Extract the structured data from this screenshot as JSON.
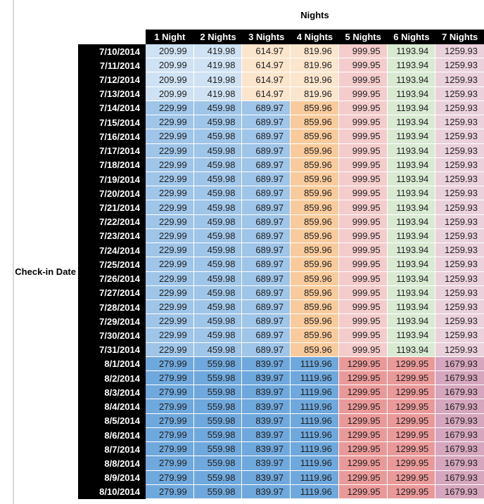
{
  "title": "Nights",
  "axis_label": "Check-in Date",
  "palette": {
    "light_blue": "#CFE2F3",
    "med_blue": "#9FC5E8",
    "blue": "#6FA8DC",
    "light_orange": "#FCE5CD",
    "med_orange": "#F9CB9C",
    "light_red": "#F4CCCC",
    "med_red": "#EA9999",
    "light_green": "#D9EAD3",
    "light_magenta": "#EAD1DC",
    "med_magenta": "#D5A6BD",
    "header_bg": "#000000",
    "header_text": "#FFFFFF",
    "value_text": "#1F1F1F",
    "gridline": "#FFFFFF"
  },
  "bands": {
    "early_july": {
      "colors": [
        "light_blue",
        "light_blue",
        "light_orange",
        "light_orange",
        "light_red",
        "light_green",
        "light_magenta"
      ]
    },
    "mid_july": {
      "colors": [
        "med_blue",
        "med_blue",
        "med_blue",
        "med_orange",
        "light_red",
        "light_green",
        "light_magenta"
      ]
    },
    "august": {
      "colors": [
        "blue",
        "blue",
        "blue",
        "blue",
        "med_red",
        "med_red",
        "med_magenta"
      ]
    }
  },
  "chart_data": {
    "type": "table",
    "title": "Nights",
    "row_axis_label": "Check-in Date",
    "columns": [
      "1 Night",
      "2 Nights",
      "3 Nights",
      "4 Nights",
      "5 Nights",
      "6 Nights",
      "7 Nights"
    ],
    "rows": [
      {
        "date": "7/10/2014",
        "band": "early_july",
        "values": [
          "209.99",
          "419.98",
          "614.97",
          "819.96",
          "999.95",
          "1193.94",
          "1259.93"
        ]
      },
      {
        "date": "7/11/2014",
        "band": "early_july",
        "values": [
          "209.99",
          "419.98",
          "614.97",
          "819.96",
          "999.95",
          "1193.94",
          "1259.93"
        ]
      },
      {
        "date": "7/12/2014",
        "band": "early_july",
        "values": [
          "209.99",
          "419.98",
          "614.97",
          "819.96",
          "999.95",
          "1193.94",
          "1259.93"
        ]
      },
      {
        "date": "7/13/2014",
        "band": "early_july",
        "values": [
          "209.99",
          "419.98",
          "614.97",
          "819.96",
          "999.95",
          "1193.94",
          "1259.93"
        ]
      },
      {
        "date": "7/14/2014",
        "band": "mid_july",
        "values": [
          "229.99",
          "459.98",
          "689.97",
          "859.96",
          "999.95",
          "1193.94",
          "1259.93"
        ]
      },
      {
        "date": "7/15/2014",
        "band": "mid_july",
        "values": [
          "229.99",
          "459.98",
          "689.97",
          "859.96",
          "999.95",
          "1193.94",
          "1259.93"
        ]
      },
      {
        "date": "7/16/2014",
        "band": "mid_july",
        "values": [
          "229.99",
          "459.98",
          "689.97",
          "859.96",
          "999.95",
          "1193.94",
          "1259.93"
        ]
      },
      {
        "date": "7/17/2014",
        "band": "mid_july",
        "values": [
          "229.99",
          "459.98",
          "689.97",
          "859.96",
          "999.95",
          "1193.94",
          "1259.93"
        ]
      },
      {
        "date": "7/18/2014",
        "band": "mid_july",
        "values": [
          "229.99",
          "459.98",
          "689.97",
          "859.96",
          "999.95",
          "1193.94",
          "1259.93"
        ]
      },
      {
        "date": "7/19/2014",
        "band": "mid_july",
        "values": [
          "229.99",
          "459.98",
          "689.97",
          "859.96",
          "999.95",
          "1193.94",
          "1259.93"
        ]
      },
      {
        "date": "7/20/2014",
        "band": "mid_july",
        "values": [
          "229.99",
          "459.98",
          "689.97",
          "859.96",
          "999.95",
          "1193.94",
          "1259.93"
        ]
      },
      {
        "date": "7/21/2014",
        "band": "mid_july",
        "values": [
          "229.99",
          "459.98",
          "689.97",
          "859.96",
          "999.95",
          "1193.94",
          "1259.93"
        ]
      },
      {
        "date": "7/22/2014",
        "band": "mid_july",
        "values": [
          "229.99",
          "459.98",
          "689.97",
          "859.96",
          "999.95",
          "1193.94",
          "1259.93"
        ]
      },
      {
        "date": "7/23/2014",
        "band": "mid_july",
        "values": [
          "229.99",
          "459.98",
          "689.97",
          "859.96",
          "999.95",
          "1193.94",
          "1259.93"
        ]
      },
      {
        "date": "7/24/2014",
        "band": "mid_july",
        "values": [
          "229.99",
          "459.98",
          "689.97",
          "859.96",
          "999.95",
          "1193.94",
          "1259.93"
        ]
      },
      {
        "date": "7/25/2014",
        "band": "mid_july",
        "values": [
          "229.99",
          "459.98",
          "689.97",
          "859.96",
          "999.95",
          "1193.94",
          "1259.93"
        ]
      },
      {
        "date": "7/26/2014",
        "band": "mid_july",
        "values": [
          "229.99",
          "459.98",
          "689.97",
          "859.96",
          "999.95",
          "1193.94",
          "1259.93"
        ]
      },
      {
        "date": "7/27/2014",
        "band": "mid_july",
        "values": [
          "229.99",
          "459.98",
          "689.97",
          "859.96",
          "999.95",
          "1193.94",
          "1259.93"
        ]
      },
      {
        "date": "7/28/2014",
        "band": "mid_july",
        "values": [
          "229.99",
          "459.98",
          "689.97",
          "859.96",
          "999.95",
          "1193.94",
          "1259.93"
        ]
      },
      {
        "date": "7/29/2014",
        "band": "mid_july",
        "values": [
          "229.99",
          "459.98",
          "689.97",
          "859.96",
          "999.95",
          "1193.94",
          "1259.93"
        ]
      },
      {
        "date": "7/30/2014",
        "band": "mid_july",
        "values": [
          "229.99",
          "459.98",
          "689.97",
          "859.96",
          "999.95",
          "1193.94",
          "1259.93"
        ]
      },
      {
        "date": "7/31/2014",
        "band": "mid_july",
        "values": [
          "229.99",
          "459.98",
          "689.97",
          "859.96",
          "999.95",
          "1193.94",
          "1259.93"
        ]
      },
      {
        "date": "8/1/2014",
        "band": "august",
        "values": [
          "279.99",
          "559.98",
          "839.97",
          "1119.96",
          "1299.95",
          "1299.95",
          "1679.93"
        ]
      },
      {
        "date": "8/2/2014",
        "band": "august",
        "values": [
          "279.99",
          "559.98",
          "839.97",
          "1119.96",
          "1299.95",
          "1299.95",
          "1679.93"
        ]
      },
      {
        "date": "8/3/2014",
        "band": "august",
        "values": [
          "279.99",
          "559.98",
          "839.97",
          "1119.96",
          "1299.95",
          "1299.95",
          "1679.93"
        ]
      },
      {
        "date": "8/4/2014",
        "band": "august",
        "values": [
          "279.99",
          "559.98",
          "839.97",
          "1119.96",
          "1299.95",
          "1299.95",
          "1679.93"
        ]
      },
      {
        "date": "8/5/2014",
        "band": "august",
        "values": [
          "279.99",
          "559.98",
          "839.97",
          "1119.96",
          "1299.95",
          "1299.95",
          "1679.93"
        ]
      },
      {
        "date": "8/6/2014",
        "band": "august",
        "values": [
          "279.99",
          "559.98",
          "839.97",
          "1119.96",
          "1299.95",
          "1299.95",
          "1679.93"
        ]
      },
      {
        "date": "8/7/2014",
        "band": "august",
        "values": [
          "279.99",
          "559.98",
          "839.97",
          "1119.96",
          "1299.95",
          "1299.95",
          "1679.93"
        ]
      },
      {
        "date": "8/8/2014",
        "band": "august",
        "values": [
          "279.99",
          "559.98",
          "839.97",
          "1119.96",
          "1299.95",
          "1299.95",
          "1679.93"
        ]
      },
      {
        "date": "8/9/2014",
        "band": "august",
        "values": [
          "279.99",
          "559.98",
          "839.97",
          "1119.96",
          "1299.95",
          "1299.95",
          "1679.93"
        ]
      },
      {
        "date": "8/10/2014",
        "band": "august",
        "values": [
          "279.99",
          "559.98",
          "839.97",
          "1119.96",
          "1299.95",
          "1299.95",
          "1679.93"
        ]
      }
    ]
  }
}
